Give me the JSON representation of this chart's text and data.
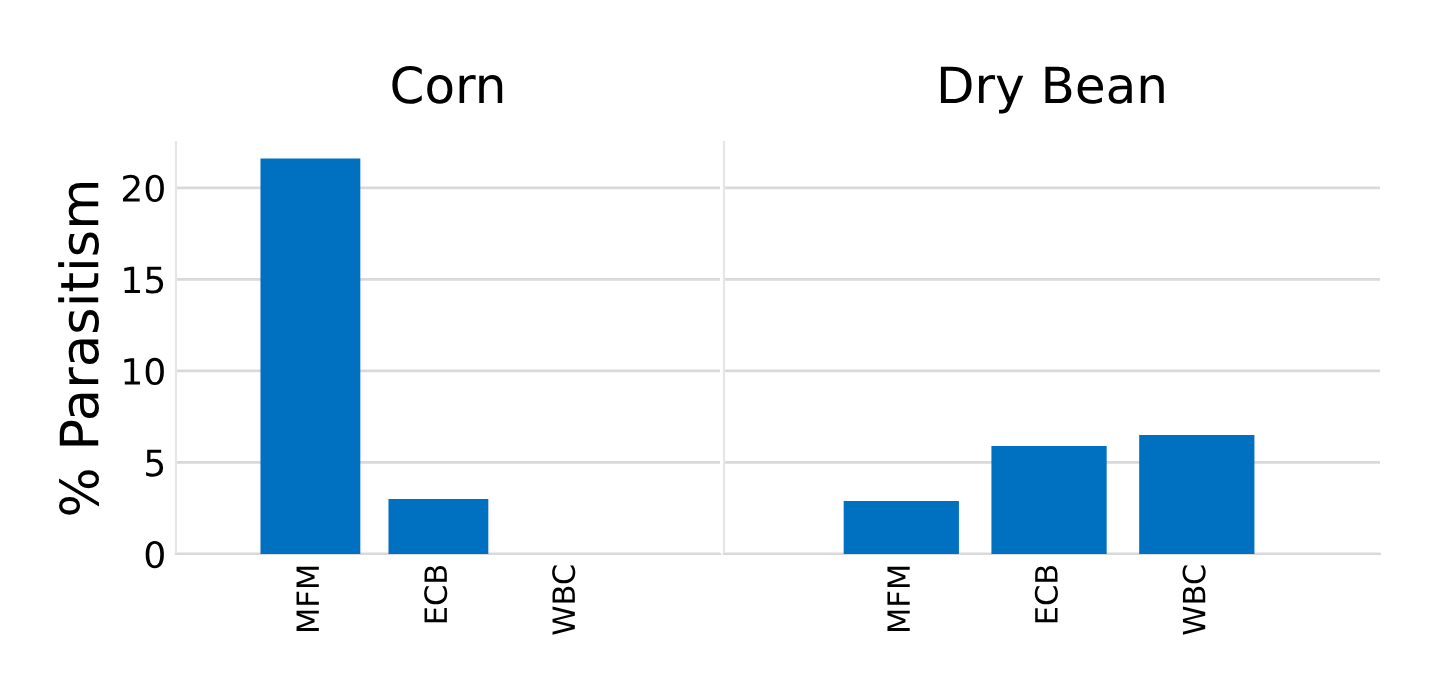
{
  "chart_data": [
    {
      "type": "bar",
      "title": "Corn",
      "ylabel": "% Parasitism",
      "categories": [
        "MFM",
        "ECB",
        "WBC"
      ],
      "values": [
        21.6,
        3.0,
        0
      ],
      "color": "#0070c0",
      "ylim": [
        0,
        22.5
      ],
      "yticks": [
        0,
        5,
        10,
        15,
        20
      ],
      "grid": "y"
    },
    {
      "type": "bar",
      "title": "Dry Bean",
      "categories": [
        "MFM",
        "ECB",
        "WBC"
      ],
      "values": [
        2.9,
        5.9,
        6.5
      ],
      "color": "#0070c0",
      "ylim": [
        0,
        22.5
      ],
      "yticks": [
        0,
        5,
        10,
        15,
        20
      ],
      "grid": "y",
      "tick_labels": "x"
    }
  ]
}
